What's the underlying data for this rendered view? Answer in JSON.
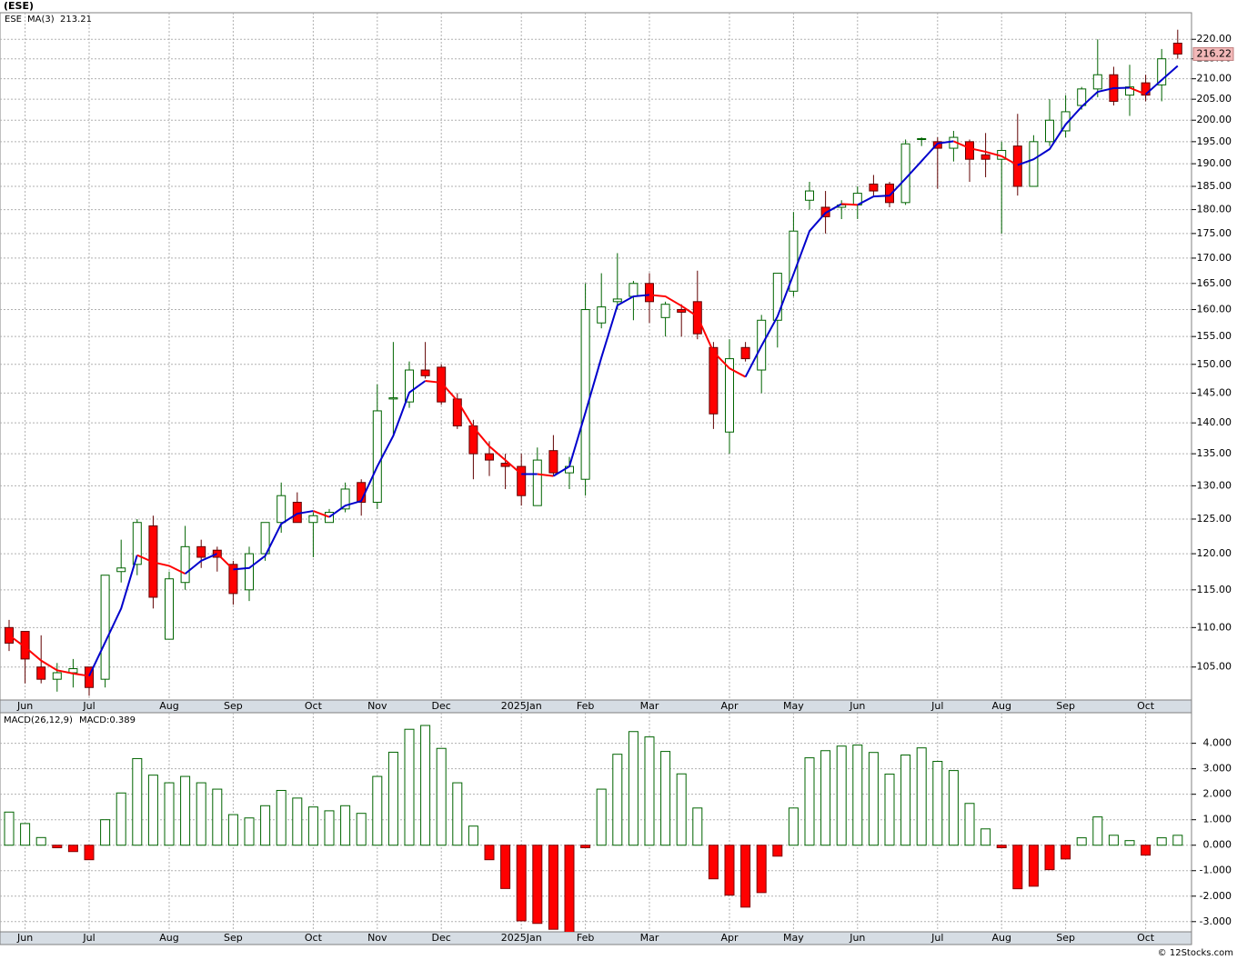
{
  "header": {
    "title": "(ESE)"
  },
  "footer": "© 12Stocks.com",
  "chart_data": [
    {
      "type": "candlestick",
      "symbol": "ESE",
      "log": true,
      "grid": true,
      "up_color": "#006400",
      "down_color": "#ff0000",
      "categories": [
        null,
        "Jun",
        null,
        null,
        null,
        "Jul",
        null,
        null,
        null,
        null,
        "Aug",
        null,
        null,
        null,
        "Sep",
        null,
        null,
        null,
        null,
        "Oct",
        null,
        null,
        null,
        "Nov",
        null,
        null,
        null,
        "Dec",
        null,
        null,
        null,
        null,
        "2025Jan",
        null,
        null,
        null,
        "Feb",
        null,
        null,
        null,
        "Mar",
        null,
        null,
        null,
        null,
        "Apr",
        null,
        null,
        null,
        "May",
        null,
        null,
        null,
        "Jun",
        null,
        null,
        null,
        null,
        "Jul",
        null,
        null,
        null,
        "Aug",
        null,
        null,
        null,
        "Sep",
        null,
        null,
        null,
        null,
        "Oct",
        null,
        null
      ],
      "open": [
        110,
        109.5,
        105,
        103.5,
        104.3,
        105,
        103.5,
        117.5,
        118.5,
        124,
        108.5,
        116,
        121,
        120.5,
        118.5,
        115,
        120,
        124.5,
        127.5,
        124.5,
        124.5,
        126.5,
        130.5,
        127.5,
        144,
        143.5,
        149,
        149.5,
        144,
        139.5,
        135,
        133.5,
        133,
        127,
        135.5,
        132,
        131,
        157.5,
        161.5,
        162.5,
        165,
        158.5,
        160,
        161.5,
        153,
        138.5,
        153,
        149,
        158,
        163.5,
        182,
        180.5,
        180.5,
        181,
        185.5,
        185.5,
        181.5,
        195.5,
        195,
        193.5,
        195,
        192,
        191,
        194,
        185,
        195,
        197.5,
        203.5,
        207.5,
        211,
        206,
        209,
        208.5,
        219
      ],
      "high": [
        111,
        109.5,
        109,
        105.5,
        106,
        105,
        117,
        122,
        125,
        125.5,
        117.5,
        124,
        122,
        121,
        119,
        121,
        124.5,
        130.5,
        129,
        126,
        126.5,
        130.5,
        131,
        146.5,
        154,
        150.5,
        154,
        150,
        145,
        140.5,
        137,
        135,
        135,
        136,
        138,
        134.5,
        165,
        167,
        171,
        165.5,
        167,
        161.5,
        161,
        167.5,
        154,
        154.5,
        154,
        159,
        167,
        179.5,
        186,
        184,
        182,
        185,
        187.5,
        186,
        195.5,
        196,
        196,
        197.5,
        195.5,
        197,
        195,
        201.5,
        196.5,
        205,
        206,
        208,
        220,
        213,
        213.5,
        211,
        217.5,
        222.5
      ],
      "low": [
        107,
        103,
        103,
        102,
        102.5,
        101.5,
        102.5,
        116,
        117,
        112.5,
        108.5,
        115,
        118,
        117.5,
        113,
        113.5,
        119,
        123,
        124.5,
        119.5,
        124.5,
        126,
        125.5,
        126.5,
        138,
        142.5,
        147.5,
        143,
        139,
        131,
        131.5,
        129.5,
        127,
        127,
        131.5,
        129.5,
        128.5,
        156.5,
        160,
        158,
        157.5,
        155,
        155,
        154.5,
        139,
        135,
        150.5,
        145,
        153,
        162.5,
        180,
        175,
        178,
        178,
        183,
        180.5,
        181,
        194,
        184.5,
        190.5,
        186,
        187,
        175,
        183,
        185,
        194,
        196,
        202.5,
        205.5,
        203.5,
        201,
        204.5,
        204.5,
        215
      ],
      "close": [
        108,
        106,
        103.5,
        104.3,
        104.8,
        102.5,
        117,
        118,
        124.5,
        114,
        116.5,
        121,
        119.5,
        119.5,
        114.5,
        120,
        124.5,
        128.5,
        124.5,
        125.5,
        126,
        129.5,
        127.5,
        142,
        144.2,
        149,
        148,
        143.5,
        139.5,
        135,
        134,
        133,
        128.5,
        134,
        132,
        133,
        160,
        160.5,
        162,
        165,
        161.5,
        161,
        159.5,
        155.5,
        141.5,
        151,
        151,
        158,
        167,
        175.5,
        184,
        178.5,
        181,
        183.5,
        184,
        181.5,
        194.5,
        195.7,
        193.5,
        196,
        191,
        191,
        193,
        185,
        195,
        200,
        202,
        207.5,
        211,
        204.5,
        208,
        206,
        215,
        216.22
      ],
      "series": [
        {
          "name": "MA(3)",
          "color": "#0000cc",
          "down_color": "#ff0000",
          "values": [
            109,
            107.5,
            105.8,
            104.6,
            104.2,
            103.9,
            108.1,
            112.5,
            119.8,
            118.8,
            118.3,
            117.2,
            119,
            120,
            117.8,
            118,
            119.7,
            124.3,
            125.8,
            126.2,
            125.3,
            127,
            127.7,
            133,
            137.9,
            145.1,
            147.1,
            146.8,
            143.7,
            139.3,
            136.2,
            134,
            131.8,
            131.8,
            131.5,
            133,
            141.7,
            151.2,
            160.8,
            162.5,
            162.8,
            162.5,
            160.7,
            158.7,
            152.2,
            149.3,
            147.8,
            153.3,
            158.7,
            166.8,
            175.5,
            179.3,
            181.2,
            181,
            182.8,
            183,
            186.7,
            190.6,
            194.6,
            195.1,
            193.5,
            192.7,
            191.7,
            189.7,
            191,
            193.3,
            199,
            203.2,
            206.8,
            207.7,
            207.8,
            206.2,
            209.7,
            213.21
          ]
        }
      ],
      "ylim": [
        101,
        227
      ],
      "yticks": [
        {
          "value": 105,
          "label": "105.00"
        },
        {
          "value": 110,
          "label": "110.00"
        },
        {
          "value": 115,
          "label": "115.00"
        },
        {
          "value": 120,
          "label": "120.00"
        },
        {
          "value": 125,
          "label": "125.00"
        },
        {
          "value": 130,
          "label": "130.00"
        },
        {
          "value": 135,
          "label": "135.00"
        },
        {
          "value": 140,
          "label": "140.00"
        },
        {
          "value": 145,
          "label": "145.00"
        },
        {
          "value": 150,
          "label": "150.00"
        },
        {
          "value": 155,
          "label": "155.00"
        },
        {
          "value": 160,
          "label": "160.00"
        },
        {
          "value": 165,
          "label": "165.00"
        },
        {
          "value": 170,
          "label": "170.00"
        },
        {
          "value": 175,
          "label": "175.00"
        },
        {
          "value": 180,
          "label": "180.00"
        },
        {
          "value": 185,
          "label": "185.00"
        },
        {
          "value": 190,
          "label": "190.00"
        },
        {
          "value": 195,
          "label": "195.00"
        },
        {
          "value": 200,
          "label": "200.00"
        },
        {
          "value": 205,
          "label": "205.00"
        },
        {
          "value": 210,
          "label": "210.00"
        },
        {
          "value": 215,
          "label": "215.00"
        },
        {
          "value": 220,
          "label": "220.00"
        }
      ]
    },
    {
      "type": "bar",
      "name": "MACD(26,12,9)",
      "legend_prefix": "MACD:",
      "grid": true,
      "up_color": "#006400",
      "down_color": "#ff0000",
      "legend_color": "#0000cc",
      "categories": [
        null,
        "Jun",
        null,
        null,
        null,
        "Jul",
        null,
        null,
        null,
        null,
        "Aug",
        null,
        null,
        null,
        "Sep",
        null,
        null,
        null,
        null,
        "Oct",
        null,
        null,
        null,
        "Nov",
        null,
        null,
        null,
        "Dec",
        null,
        null,
        null,
        null,
        "2025Jan",
        null,
        null,
        null,
        "Feb",
        null,
        null,
        null,
        "Mar",
        null,
        null,
        null,
        null,
        "Apr",
        null,
        null,
        null,
        "May",
        null,
        null,
        null,
        "Jun",
        null,
        null,
        null,
        null,
        "Jul",
        null,
        null,
        null,
        "Aug",
        null,
        null,
        null,
        "Sep",
        null,
        null,
        null,
        null,
        "Oct",
        null,
        null
      ],
      "values": [
        1.3,
        0.85,
        0.3,
        -0.1,
        -0.25,
        -0.57,
        1.0,
        2.05,
        3.4,
        2.75,
        2.45,
        2.7,
        2.45,
        2.2,
        1.2,
        1.07,
        1.55,
        2.15,
        1.85,
        1.5,
        1.35,
        1.55,
        1.25,
        2.7,
        3.65,
        4.55,
        4.7,
        3.8,
        2.45,
        0.75,
        -0.57,
        -1.7,
        -2.97,
        -3.07,
        -3.3,
        -3.5,
        -0.1,
        2.2,
        3.57,
        4.46,
        4.25,
        3.68,
        2.8,
        1.46,
        -1.32,
        -1.96,
        -2.43,
        -1.86,
        -0.43,
        1.46,
        3.43,
        3.71,
        3.89,
        3.93,
        3.64,
        2.79,
        3.54,
        3.82,
        3.29,
        2.93,
        1.64,
        0.64,
        -0.1,
        -1.71,
        -1.61,
        -0.96,
        -0.54,
        0.29,
        1.11,
        0.39,
        0.18,
        -0.39,
        0.29,
        0.389
      ],
      "ylim": [
        -3.4,
        5.2
      ],
      "yticks": [
        {
          "value": -3,
          "label": "-3.000"
        },
        {
          "value": -2,
          "label": "-2.000"
        },
        {
          "value": -1,
          "label": "-1.000"
        },
        {
          "value": 0,
          "label": "0.000"
        },
        {
          "value": 1,
          "label": "1.000"
        },
        {
          "value": 2,
          "label": "2.000"
        },
        {
          "value": 3,
          "label": "3.000"
        },
        {
          "value": 4,
          "label": "4.000"
        }
      ]
    }
  ]
}
